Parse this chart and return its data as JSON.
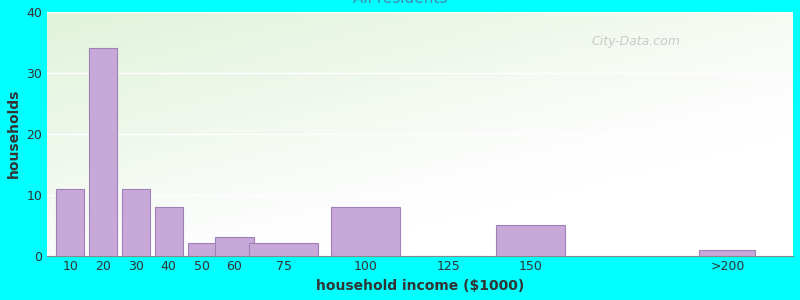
{
  "xlabel": "household income ($1000)",
  "ylabel": "households",
  "bar_labels": [
    "10",
    "20",
    "30",
    "40",
    "50",
    "60",
    "75",
    "100",
    "125",
    "150",
    ">200"
  ],
  "bar_values": [
    11,
    34,
    11,
    8,
    2,
    3,
    2,
    8,
    0,
    5,
    1
  ],
  "bar_color": "#C8A8D8",
  "bar_edgecolor": "#A080B8",
  "ylim": [
    0,
    40
  ],
  "yticks": [
    0,
    10,
    20,
    30,
    40
  ],
  "background_color": "#00FFFF",
  "title_fontsize": 13,
  "subtitle_fontsize": 11,
  "subtitle_color": "#4488AA",
  "axis_label_fontsize": 10,
  "tick_fontsize": 9,
  "watermark": "City-Data.com",
  "x_positions": [
    10,
    20,
    30,
    40,
    50,
    60,
    75,
    100,
    125,
    150,
    210
  ],
  "bar_widths": [
    8.5,
    8.5,
    8.5,
    8.5,
    8.5,
    12,
    21,
    21,
    21,
    21,
    17
  ],
  "xlim": [
    3,
    230
  ]
}
